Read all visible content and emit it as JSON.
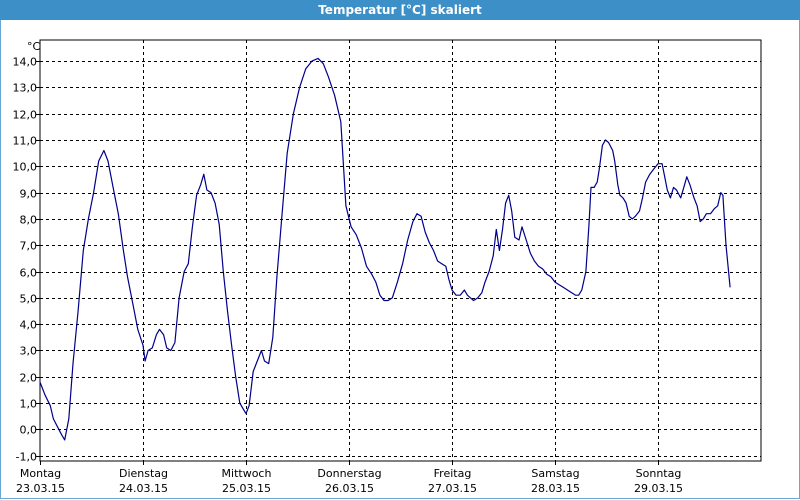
{
  "window": {
    "title": "Temperatur [°C] skaliert"
  },
  "chart_data": {
    "type": "line",
    "title": "Temperatur [°C] skaliert",
    "ylabel": "°C",
    "ylim": [
      -1.2,
      14.8
    ],
    "y_ticks": [
      14.0,
      13.0,
      12.0,
      11.0,
      10.0,
      9.0,
      8.0,
      7.0,
      6.0,
      5.0,
      4.0,
      3.0,
      2.0,
      1.0,
      0.0,
      -1.0
    ],
    "y_tick_labels": [
      "14,0",
      "13,0",
      "12,0",
      "11,0",
      "10,0",
      "9,0",
      "8,0",
      "7,0",
      "6,0",
      "5,0",
      "4,0",
      "3,0",
      "2,0",
      "1,0",
      "0,0",
      "-1,0"
    ],
    "xlim": [
      0,
      7
    ],
    "x_ticks": [
      0,
      1,
      2,
      3,
      4,
      5,
      6
    ],
    "x_day_labels": [
      "Montag",
      "Dienstag",
      "Mittwoch",
      "Donnerstag",
      "Freitag",
      "Samstag",
      "Sonntag"
    ],
    "x_date_labels": [
      "23.03.15",
      "24.03.15",
      "25.03.15",
      "26.03.15",
      "27.03.15",
      "28.03.15",
      "29.03.15"
    ],
    "grid": true,
    "line_color": "#00008b",
    "series": [
      {
        "points": [
          [
            0.0,
            1.8
          ],
          [
            0.05,
            1.3
          ],
          [
            0.1,
            0.9
          ],
          [
            0.13,
            0.4
          ],
          [
            0.17,
            0.1
          ],
          [
            0.21,
            -0.2
          ],
          [
            0.24,
            -0.4
          ],
          [
            0.28,
            0.4
          ],
          [
            0.32,
            2.5
          ],
          [
            0.37,
            4.5
          ],
          [
            0.42,
            6.8
          ],
          [
            0.47,
            8.0
          ],
          [
            0.52,
            9.0
          ],
          [
            0.57,
            10.2
          ],
          [
            0.62,
            10.6
          ],
          [
            0.66,
            10.2
          ],
          [
            0.71,
            9.2
          ],
          [
            0.76,
            8.2
          ],
          [
            0.81,
            6.8
          ],
          [
            0.85,
            5.8
          ],
          [
            0.9,
            4.8
          ],
          [
            0.95,
            3.8
          ],
          [
            1.0,
            3.2
          ],
          [
            1.02,
            2.6
          ],
          [
            1.05,
            3.0
          ],
          [
            1.09,
            3.1
          ],
          [
            1.13,
            3.6
          ],
          [
            1.16,
            3.8
          ],
          [
            1.2,
            3.6
          ],
          [
            1.23,
            3.1
          ],
          [
            1.27,
            3.0
          ],
          [
            1.31,
            3.3
          ],
          [
            1.35,
            5.0
          ],
          [
            1.4,
            6.0
          ],
          [
            1.44,
            6.3
          ],
          [
            1.48,
            7.7
          ],
          [
            1.52,
            8.9
          ],
          [
            1.56,
            9.3
          ],
          [
            1.59,
            9.7
          ],
          [
            1.62,
            9.1
          ],
          [
            1.66,
            9.0
          ],
          [
            1.7,
            8.6
          ],
          [
            1.74,
            7.8
          ],
          [
            1.78,
            6.0
          ],
          [
            1.82,
            4.5
          ],
          [
            1.86,
            3.2
          ],
          [
            1.9,
            2.0
          ],
          [
            1.94,
            1.0
          ],
          [
            1.97,
            0.8
          ],
          [
            2.0,
            0.6
          ],
          [
            2.03,
            0.9
          ],
          [
            2.07,
            2.2
          ],
          [
            2.11,
            2.6
          ],
          [
            2.15,
            3.0
          ],
          [
            2.18,
            2.6
          ],
          [
            2.22,
            2.5
          ],
          [
            2.26,
            3.5
          ],
          [
            2.3,
            5.8
          ],
          [
            2.35,
            8.2
          ],
          [
            2.4,
            10.5
          ],
          [
            2.46,
            12.0
          ],
          [
            2.52,
            13.0
          ],
          [
            2.58,
            13.7
          ],
          [
            2.64,
            14.0
          ],
          [
            2.7,
            14.1
          ],
          [
            2.75,
            13.9
          ],
          [
            2.8,
            13.4
          ],
          [
            2.86,
            12.7
          ],
          [
            2.92,
            11.7
          ],
          [
            2.97,
            8.5
          ],
          [
            3.02,
            7.7
          ],
          [
            3.07,
            7.4
          ],
          [
            3.12,
            6.9
          ],
          [
            3.17,
            6.2
          ],
          [
            3.22,
            5.9
          ],
          [
            3.26,
            5.6
          ],
          [
            3.3,
            5.1
          ],
          [
            3.34,
            4.9
          ],
          [
            3.38,
            4.9
          ],
          [
            3.42,
            5.0
          ],
          [
            3.47,
            5.6
          ],
          [
            3.52,
            6.3
          ],
          [
            3.57,
            7.2
          ],
          [
            3.62,
            7.9
          ],
          [
            3.66,
            8.2
          ],
          [
            3.7,
            8.1
          ],
          [
            3.74,
            7.5
          ],
          [
            3.78,
            7.1
          ],
          [
            3.82,
            6.8
          ],
          [
            3.86,
            6.4
          ],
          [
            3.9,
            6.3
          ],
          [
            3.94,
            6.2
          ],
          [
            3.97,
            5.7
          ],
          [
            4.0,
            5.3
          ],
          [
            4.04,
            5.1
          ],
          [
            4.08,
            5.1
          ],
          [
            4.12,
            5.3
          ],
          [
            4.15,
            5.1
          ],
          [
            4.18,
            5.0
          ],
          [
            4.21,
            4.9
          ],
          [
            4.25,
            5.0
          ],
          [
            4.29,
            5.2
          ],
          [
            4.32,
            5.6
          ],
          [
            4.36,
            6.0
          ],
          [
            4.4,
            6.6
          ],
          [
            4.43,
            7.6
          ],
          [
            4.46,
            6.8
          ],
          [
            4.49,
            7.6
          ],
          [
            4.52,
            8.6
          ],
          [
            4.55,
            8.9
          ],
          [
            4.58,
            8.3
          ],
          [
            4.61,
            7.3
          ],
          [
            4.65,
            7.2
          ],
          [
            4.68,
            7.7
          ],
          [
            4.72,
            7.2
          ],
          [
            4.76,
            6.7
          ],
          [
            4.8,
            6.4
          ],
          [
            4.84,
            6.2
          ],
          [
            4.88,
            6.1
          ],
          [
            4.92,
            5.9
          ],
          [
            4.96,
            5.8
          ],
          [
            5.0,
            5.6
          ],
          [
            5.04,
            5.5
          ],
          [
            5.08,
            5.4
          ],
          [
            5.12,
            5.3
          ],
          [
            5.16,
            5.2
          ],
          [
            5.2,
            5.1
          ],
          [
            5.23,
            5.1
          ],
          [
            5.26,
            5.3
          ],
          [
            5.3,
            6.0
          ],
          [
            5.33,
            7.8
          ],
          [
            5.35,
            9.2
          ],
          [
            5.38,
            9.2
          ],
          [
            5.41,
            9.4
          ],
          [
            5.43,
            9.9
          ],
          [
            5.46,
            10.8
          ],
          [
            5.49,
            11.0
          ],
          [
            5.52,
            10.9
          ],
          [
            5.56,
            10.6
          ],
          [
            5.58,
            10.2
          ],
          [
            5.61,
            9.3
          ],
          [
            5.63,
            8.9
          ],
          [
            5.66,
            8.8
          ],
          [
            5.69,
            8.6
          ],
          [
            5.72,
            8.1
          ],
          [
            5.75,
            8.0
          ],
          [
            5.78,
            8.1
          ],
          [
            5.82,
            8.3
          ],
          [
            5.85,
            8.8
          ],
          [
            5.88,
            9.4
          ],
          [
            5.92,
            9.7
          ],
          [
            5.96,
            9.9
          ],
          [
            6.0,
            10.1
          ],
          [
            6.04,
            10.1
          ],
          [
            6.06,
            9.7
          ],
          [
            6.09,
            9.1
          ],
          [
            6.12,
            8.8
          ],
          [
            6.15,
            9.2
          ],
          [
            6.18,
            9.1
          ],
          [
            6.22,
            8.8
          ],
          [
            6.25,
            9.2
          ],
          [
            6.28,
            9.6
          ],
          [
            6.31,
            9.3
          ],
          [
            6.35,
            8.8
          ],
          [
            6.38,
            8.5
          ],
          [
            6.41,
            7.9
          ],
          [
            6.44,
            8.0
          ],
          [
            6.47,
            8.2
          ],
          [
            6.51,
            8.2
          ],
          [
            6.55,
            8.4
          ],
          [
            6.58,
            8.5
          ],
          [
            6.61,
            9.0
          ],
          [
            6.63,
            8.9
          ],
          [
            6.66,
            7.0
          ],
          [
            6.7,
            5.4
          ]
        ]
      }
    ]
  }
}
